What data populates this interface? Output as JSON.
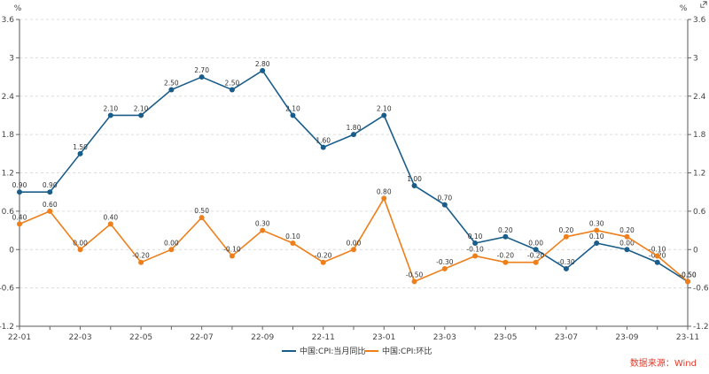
{
  "chart_data": {
    "type": "line",
    "x": [
      "22-01",
      "22-02",
      "22-03",
      "22-04",
      "22-05",
      "22-06",
      "22-07",
      "22-08",
      "22-09",
      "22-10",
      "22-11",
      "22-12",
      "23-01",
      "23-02",
      "23-03",
      "23-04",
      "23-05",
      "23-06",
      "23-07",
      "23-08",
      "23-09",
      "23-10",
      "23-11"
    ],
    "xtick_labels": [
      "22-01",
      "22-03",
      "22-05",
      "22-07",
      "22-09",
      "22-11",
      "23-01",
      "23-03",
      "23-05",
      "23-07",
      "23-09",
      "23-11"
    ],
    "ylim": [
      -1.2,
      3.6
    ],
    "yticks": [
      "3.6",
      "3",
      "2.4",
      "1.8",
      "1.2",
      "0.6",
      "0",
      "-0.6",
      "-1.2"
    ],
    "yticks_right": [
      "3.6",
      "3",
      "2.4",
      "1.8",
      "1.2",
      "0.6",
      "0",
      "-0.6",
      "-1.2"
    ],
    "unit_left": "%",
    "unit_right": "%",
    "grid": true,
    "legend_position": "bottom-center",
    "series": [
      {
        "name": "中国:CPI:当月同比",
        "color": "#1a5d8a",
        "values": [
          0.9,
          0.9,
          1.5,
          2.1,
          2.1,
          2.5,
          2.7,
          2.5,
          2.8,
          2.1,
          1.6,
          1.8,
          2.1,
          1.0,
          0.7,
          0.1,
          0.2,
          0.0,
          -0.3,
          0.1,
          0.0,
          -0.2,
          -0.5
        ],
        "labels": [
          "0.90",
          "0.90",
          "1.50",
          "2.10",
          "2.10",
          "2.50",
          "2.70",
          "2.50",
          "2.80",
          "2.10",
          "1.60",
          "1.80",
          "2.10",
          "1.00",
          "0.70",
          "0.10",
          "0.20",
          "0.00",
          "-0.30",
          "0.10",
          "0.00",
          "-0.20",
          "-0.50"
        ]
      },
      {
        "name": "中国:CPI:环比",
        "color": "#ee7f1b",
        "values": [
          0.4,
          0.6,
          0.0,
          0.4,
          -0.2,
          0.0,
          0.5,
          -0.1,
          0.3,
          0.1,
          -0.2,
          0.0,
          0.8,
          -0.5,
          -0.3,
          -0.1,
          -0.2,
          -0.2,
          0.2,
          0.3,
          0.2,
          -0.1,
          -0.5
        ],
        "labels": [
          "0.40",
          "0.60",
          "0.00",
          "0.40",
          "-0.20",
          "0.00",
          "0.50",
          "-0.10",
          "0.30",
          "0.10",
          "-0.20",
          "0.00",
          "0.80",
          "-0.50",
          "-0.30",
          "-0.10",
          "-0.20",
          "-0.20",
          "0.20",
          "0.30",
          "0.20",
          "-0.10",
          "-0.50"
        ]
      }
    ]
  },
  "source_text": "数据来源：Wind"
}
